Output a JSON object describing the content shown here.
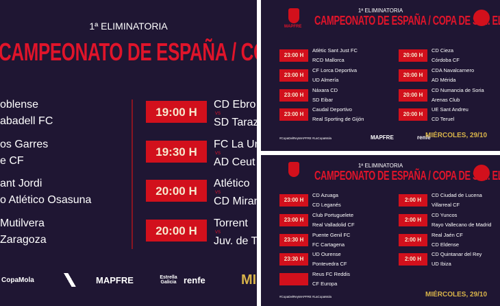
{
  "panels": [
    {
      "header": "1ª ELIMINATORIA",
      "title": "CAMPEONATO DE ESPAÑA / COPA DE S.M. EL",
      "vs": "VS",
      "partial_matches": [
        {
          "home": "oblense",
          "away": "abadell FC"
        },
        {
          "home": "os Garres",
          "away": "e CF"
        },
        {
          "home": "ant Jordi",
          "away": "o Atlético Osasuna"
        },
        {
          "home": "Mutilvera",
          "away": "Zaragoza"
        }
      ],
      "matches": [
        {
          "time": "19:00 H",
          "home": "CD Ebro",
          "away": "SD Taraz"
        },
        {
          "time": "19:30 H",
          "home": "FC La Un",
          "away": "AD Ceut"
        },
        {
          "time": "20:00 H",
          "home": "Atlético",
          "away": "CD Miran"
        },
        {
          "time": "20:00 H",
          "home": "Torrent",
          "away": "Juv. de To"
        }
      ],
      "hashtag": "CopaMola",
      "sponsors": [
        "MAPFRE",
        "Estrella Galicia",
        "renfe"
      ],
      "date": "MIÉ"
    },
    {
      "header": "1ª ELIMINATORIA",
      "title": "CAMPEONATO DE ESPAÑA / COPA DE S.M. EL REY",
      "crest": "MAPFRE",
      "columns": [
        [
          {
            "time": "23:00 H",
            "home": "Atlètic Sant Just FC",
            "away": "RCD Mallorca"
          },
          {
            "time": "23:00 H",
            "home": "CF Lorca Deportiva",
            "away": "UD Almería"
          },
          {
            "time": "23:00 H",
            "home": "Náxara CD",
            "away": "SD Eibar"
          },
          {
            "time": "23:00 H",
            "home": "Caudal Deportivo",
            "away": "Real Sporting de Gijón"
          }
        ],
        [
          {
            "time": "20:00 H",
            "home": "CD Cieza",
            "away": "Córdoba CF"
          },
          {
            "time": "20:00 H",
            "home": "CDA Navalcarnero",
            "away": "AD Mérida"
          },
          {
            "time": "20:00 H",
            "home": "CD Numancia de Soria",
            "away": "Arenas Club"
          },
          {
            "time": "20:00 H",
            "home": "UE Sant Andreu",
            "away": "CD Teruel"
          }
        ]
      ],
      "hashtag": "#CopaDelReyMAPFRE #LaCopaMola",
      "sponsors": [
        "MAPFRE",
        "renfe"
      ],
      "date": "MIÉRCOLES, 29/10"
    },
    {
      "header": "1ª ELIMINATORIA",
      "title": "CAMPEONATO DE ESPAÑA / COPA DE S.M. EL REY",
      "columns": [
        [
          {
            "time": "23:00 H",
            "home": "CD Azuaga",
            "away": "CD Leganés"
          },
          {
            "time": "23:00 H",
            "home": "Club Portuguelete",
            "away": "Real Valladolid CF"
          },
          {
            "time": "23:30 H",
            "home": "Puente Genil FC",
            "away": "FC Cartagena"
          },
          {
            "time": "23:30 H",
            "home": "UD Ourense",
            "away": "Pontevedra CF"
          },
          {
            "home": "Reus FC Reddis",
            "away": "CF Europa"
          }
        ],
        [
          {
            "time": "2:00 H",
            "home": "CD Ciudad de Lucena",
            "away": "Villarreal CF"
          },
          {
            "time": "2:00 H",
            "home": "CD Yuncos",
            "away": "Rayo Vallecano de Madrid"
          },
          {
            "time": "2:00 H",
            "home": "Real Jaén CF",
            "away": "CD Eldense"
          },
          {
            "time": "2:00 H",
            "home": "CD Quintanar del Rey",
            "away": "UD Ibiza"
          }
        ]
      ],
      "hashtag": "#CopaDelReyMAPFRE #LaCopaMola",
      "date": "MIÉRCOLES, 29/10"
    }
  ]
}
